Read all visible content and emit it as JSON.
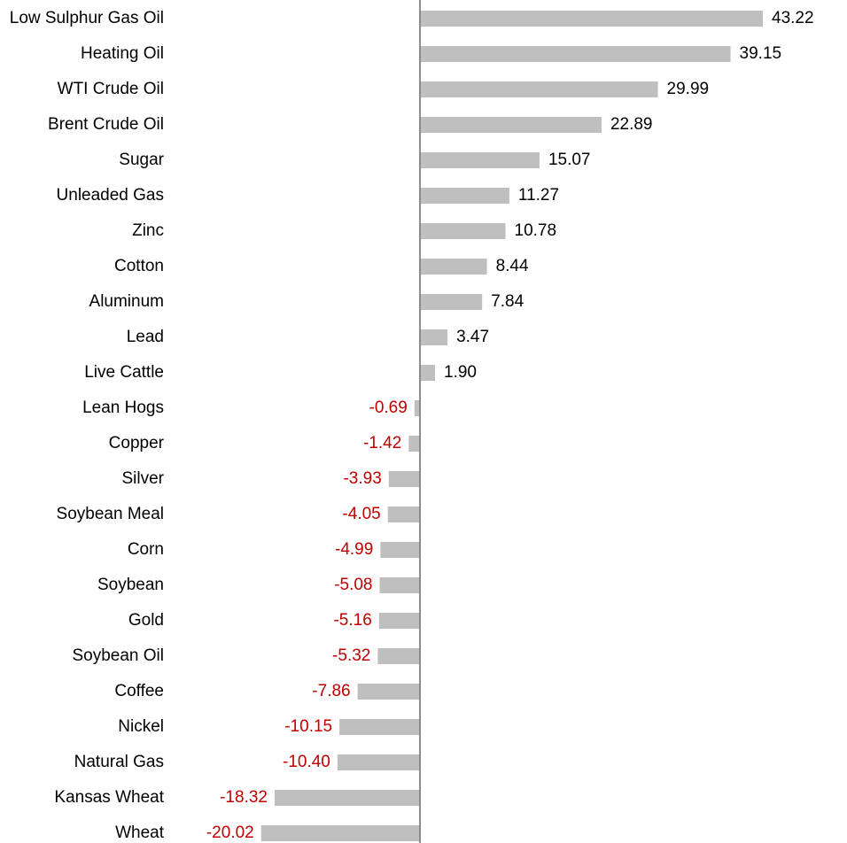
{
  "chart_data": {
    "type": "barh",
    "categories": [
      "Low Sulphur Gas Oil",
      "Heating Oil",
      "WTI Crude Oil",
      "Brent Crude Oil",
      "Sugar",
      "Unleaded Gas",
      "Zinc",
      "Cotton",
      "Aluminum",
      "Lead",
      "Live Cattle",
      "Lean Hogs",
      "Copper",
      "Silver",
      "Soybean Meal",
      "Corn",
      "Soybean",
      "Gold",
      "Soybean Oil",
      "Coffee",
      "Nickel",
      "Natural Gas",
      "Kansas Wheat",
      "Wheat"
    ],
    "values": [
      43.22,
      39.15,
      29.99,
      22.89,
      15.07,
      11.27,
      10.78,
      8.44,
      7.84,
      3.47,
      1.9,
      -0.69,
      -1.42,
      -3.93,
      -4.05,
      -4.99,
      -5.08,
      -5.16,
      -5.32,
      -7.86,
      -10.15,
      -10.4,
      -18.32,
      -20.02
    ],
    "value_labels": [
      "43.22",
      "39.15",
      "29.99",
      "22.89",
      "15.07",
      "11.27",
      "10.78",
      "8.44",
      "7.84",
      "3.47",
      "1.90",
      "-0.69",
      "-1.42",
      "-3.93",
      "-4.05",
      "-4.99",
      "-5.08",
      "-5.16",
      "-5.32",
      "-7.86",
      "-10.15",
      "-10.40",
      "-18.32",
      "-20.02"
    ],
    "color": "#bfbfbf",
    "label_color": "#000000",
    "negative_label_color": "#c00000"
  }
}
